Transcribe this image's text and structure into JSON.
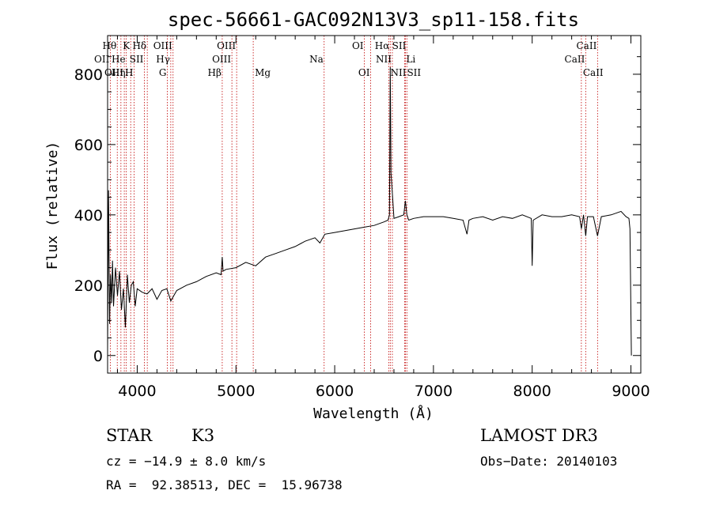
{
  "chart_data": {
    "type": "line",
    "title": "spec-56661-GAC092N13V3_sp11-158.fits",
    "xlabel": "Wavelength (Å)",
    "ylabel": "Flux (relative)",
    "xlim": [
      3700,
      9100
    ],
    "ylim": [
      -50,
      910
    ],
    "xticks": [
      4000,
      5000,
      6000,
      7000,
      8000,
      9000
    ],
    "yticks": [
      0,
      200,
      400,
      600,
      800
    ],
    "series": [
      {
        "name": "flux",
        "x": [
          3700,
          3710,
          3720,
          3730,
          3740,
          3750,
          3760,
          3780,
          3800,
          3820,
          3840,
          3860,
          3880,
          3900,
          3920,
          3940,
          3960,
          3980,
          4000,
          4050,
          4100,
          4150,
          4200,
          4250,
          4300,
          4340,
          4400,
          4500,
          4600,
          4700,
          4800,
          4850,
          4861,
          4870,
          4900,
          5000,
          5100,
          5200,
          5300,
          5400,
          5500,
          5600,
          5700,
          5800,
          5850,
          5900,
          6000,
          6100,
          6200,
          6300,
          6400,
          6500,
          6540,
          6555,
          6563,
          6570,
          6584,
          6600,
          6650,
          6700,
          6716,
          6731,
          6750,
          6800,
          6900,
          7000,
          7100,
          7200,
          7300,
          7340,
          7360,
          7400,
          7500,
          7600,
          7700,
          7800,
          7900,
          7990,
          8000,
          8010,
          8100,
          8200,
          8300,
          8400,
          8480,
          8498,
          8520,
          8542,
          8560,
          8620,
          8662,
          8700,
          8800,
          8900,
          8950,
          8980,
          8990,
          9000,
          9005
        ],
        "y": [
          20,
          470,
          90,
          230,
          150,
          270,
          140,
          250,
          170,
          240,
          130,
          190,
          80,
          230,
          150,
          200,
          210,
          140,
          190,
          180,
          175,
          190,
          160,
          185,
          190,
          155,
          185,
          200,
          210,
          225,
          235,
          230,
          280,
          240,
          245,
          250,
          265,
          255,
          280,
          290,
          300,
          310,
          325,
          335,
          320,
          345,
          350,
          355,
          360,
          365,
          370,
          380,
          385,
          400,
          820,
          520,
          460,
          390,
          395,
          400,
          440,
          400,
          385,
          390,
          395,
          395,
          395,
          390,
          385,
          345,
          385,
          390,
          395,
          385,
          395,
          390,
          400,
          390,
          255,
          385,
          400,
          395,
          395,
          400,
          395,
          360,
          400,
          340,
          395,
          395,
          340,
          395,
          400,
          410,
          395,
          390,
          360,
          120,
          0
        ]
      }
    ],
    "line_markers": [
      {
        "label": "Hθ",
        "x": 3798,
        "row": 0,
        "side": "left"
      },
      {
        "label": "K",
        "x": 3934,
        "row": 0,
        "side": "left"
      },
      {
        "label": "Hδ",
        "x": 4102,
        "row": 0,
        "side": "left"
      },
      {
        "label": "OIII",
        "x": 4363,
        "row": 0,
        "side": "left"
      },
      {
        "label": "OIII",
        "x": 5007,
        "row": 0,
        "side": "left"
      },
      {
        "label": "OI",
        "x": 6300,
        "row": 0,
        "side": "left"
      },
      {
        "label": "Hα",
        "x": 6563,
        "row": 0,
        "side": "left"
      },
      {
        "label": "SII",
        "x": 6731,
        "row": 0,
        "side": "left"
      },
      {
        "label": "CaII",
        "x": 8662,
        "row": 0,
        "side": "left"
      },
      {
        "label": "OII",
        "x": 3727,
        "row": 1,
        "side": "left"
      },
      {
        "label": "He",
        "x": 3889,
        "row": 1,
        "side": "left"
      },
      {
        "label": "SII",
        "x": 4072,
        "row": 1,
        "side": "left"
      },
      {
        "label": "Hγ",
        "x": 4340,
        "row": 1,
        "side": "left"
      },
      {
        "label": "OIII",
        "x": 4959,
        "row": 1,
        "side": "left"
      },
      {
        "label": "Na",
        "x": 5893,
        "row": 1,
        "side": "left"
      },
      {
        "label": "NII",
        "x": 6584,
        "row": 1,
        "side": "left"
      },
      {
        "label": "Li",
        "x": 6708,
        "row": 1,
        "side": "right"
      },
      {
        "label": "CaII",
        "x": 8542,
        "row": 1,
        "side": "left"
      },
      {
        "label": "OIII",
        "x": 3869,
        "row": 2,
        "side": "left"
      },
      {
        "label": "Hη",
        "x": 3889,
        "row": 2,
        "side": "left"
      },
      {
        "label": "H",
        "x": 3968,
        "row": 2,
        "side": "left"
      },
      {
        "label": "G",
        "x": 4305,
        "row": 2,
        "side": "left"
      },
      {
        "label": "Hβ",
        "x": 4861,
        "row": 2,
        "side": "left"
      },
      {
        "label": "Mg",
        "x": 5175,
        "row": 2,
        "side": "right"
      },
      {
        "label": "OI",
        "x": 6364,
        "row": 2,
        "side": "left"
      },
      {
        "label": "NII",
        "x": 6548,
        "row": 2,
        "side": "right"
      },
      {
        "label": "SII",
        "x": 6716,
        "row": 2,
        "side": "right"
      },
      {
        "label": "CaII",
        "x": 8498,
        "row": 2,
        "side": "right"
      }
    ],
    "dotted_lines_x": [
      3727,
      3798,
      3835,
      3869,
      3889,
      3934,
      3968,
      4072,
      4102,
      4305,
      4340,
      4363,
      4861,
      4959,
      5007,
      5175,
      5893,
      6300,
      6364,
      6548,
      6563,
      6584,
      6708,
      6716,
      6731,
      8498,
      8542,
      8662
    ]
  },
  "info": {
    "class": "STAR",
    "subclass": "K3",
    "survey": "LAMOST DR3",
    "cz": "cz = −14.9 ± 8.0 km/s",
    "obs_date": "Obs−Date: 20140103",
    "radec": "RA =  92.38513, DEC =  15.96738"
  },
  "colors": {
    "spectrum": "#000000",
    "marker_lines": "#c00000",
    "axes": "#000000"
  }
}
